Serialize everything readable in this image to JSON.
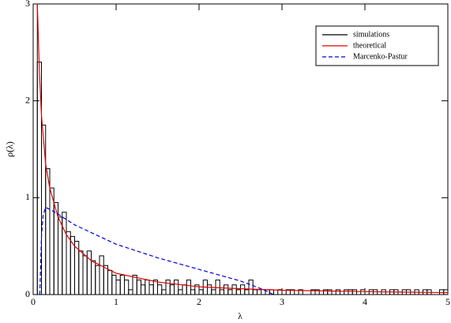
{
  "chart_data": {
    "type": "line",
    "xlabel": "λ",
    "ylabel": "ρ(λ)",
    "xlim": [
      0,
      5
    ],
    "xticks": [
      0,
      1,
      2,
      3,
      4,
      5
    ],
    "ylim": [
      0,
      3
    ],
    "yticks": [
      0,
      1,
      2,
      3
    ],
    "legend": "upper right",
    "series": [
      {
        "name": "simulations",
        "color": "#000000",
        "style": "histogram",
        "bins": [
          0,
          0.05,
          0.1,
          0.15,
          0.2,
          0.25,
          0.3,
          0.35,
          0.4,
          0.45,
          0.5,
          0.55,
          0.6,
          0.65,
          0.7,
          0.75,
          0.8,
          0.85,
          0.9,
          0.95,
          1,
          1.05,
          1.1,
          1.15,
          1.2,
          1.25,
          1.3,
          1.35,
          1.4,
          1.45,
          1.5,
          1.55,
          1.6,
          1.65,
          1.7,
          1.75,
          1.8,
          1.85,
          1.9,
          1.95,
          2,
          2.05,
          2.1,
          2.15,
          2.2,
          2.25,
          2.3,
          2.35,
          2.4,
          2.45,
          2.5,
          2.55,
          2.6,
          2.65,
          2.7,
          2.75,
          2.8,
          2.85,
          2.9,
          2.95,
          3,
          3.05,
          3.1,
          3.15,
          3.2,
          3.25,
          3.3,
          3.35,
          3.4,
          3.45,
          3.5,
          3.55,
          3.6,
          3.65,
          3.7,
          3.75,
          3.8,
          3.85,
          3.9,
          3.95,
          4,
          4.05,
          4.1,
          4.15,
          4.2,
          4.25,
          4.3,
          4.35,
          4.4,
          4.45,
          4.5,
          4.55,
          4.6,
          4.65,
          4.7,
          4.75,
          4.8,
          4.85,
          4.9,
          4.95,
          5
        ],
        "values": [
          3.2,
          2.4,
          1.75,
          1.3,
          1.1,
          0.95,
          0.8,
          0.85,
          0.65,
          0.6,
          0.55,
          0.45,
          0.4,
          0.45,
          0.35,
          0.3,
          0.4,
          0.3,
          0.25,
          0.2,
          0.15,
          0.2,
          0.15,
          0.05,
          0.2,
          0.15,
          0.1,
          0.15,
          0.1,
          0.15,
          0.1,
          0.05,
          0.15,
          0.1,
          0.15,
          0.05,
          0.1,
          0.15,
          0.05,
          0.1,
          0.05,
          0.15,
          0.1,
          0.05,
          0.15,
          0.05,
          0.1,
          0.05,
          0.1,
          0.05,
          0.1,
          0.05,
          0.15,
          0.05,
          0.05,
          0,
          0.05,
          0.05,
          0,
          0.05,
          0,
          0.05,
          0.05,
          0,
          0.05,
          0,
          0,
          0.05,
          0.05,
          0,
          0.05,
          0.05,
          0,
          0.05,
          0,
          0.05,
          0.05,
          0.05,
          0,
          0.05,
          0,
          0.05,
          0.05,
          0,
          0.05,
          0,
          0.05,
          0.05,
          0,
          0.05,
          0.05,
          0,
          0.05,
          0,
          0.05,
          0.05,
          0,
          0,
          0.05,
          0.05
        ]
      },
      {
        "name": "theoretical",
        "color": "#e00000",
        "style": "solid",
        "x": [
          0.05,
          0.075,
          0.1,
          0.15,
          0.2,
          0.3,
          0.4,
          0.5,
          0.7,
          1,
          1.5,
          2,
          2.5,
          3,
          4,
          5
        ],
        "values": [
          3.0,
          2.3,
          1.85,
          1.35,
          1.1,
          0.8,
          0.62,
          0.5,
          0.35,
          0.22,
          0.13,
          0.08,
          0.06,
          0.045,
          0.03,
          0.02
        ]
      },
      {
        "name": "Marcenko-Pastur",
        "color": "#0000dd",
        "style": "dashed",
        "x": [
          0.08,
          0.1,
          0.12,
          0.15,
          0.2,
          0.3,
          0.5,
          0.75,
          1,
          1.5,
          2,
          2.5,
          2.75,
          2.9
        ],
        "values": [
          0,
          0.6,
          0.82,
          0.9,
          0.88,
          0.83,
          0.72,
          0.62,
          0.52,
          0.38,
          0.26,
          0.14,
          0.06,
          0
        ]
      }
    ]
  }
}
